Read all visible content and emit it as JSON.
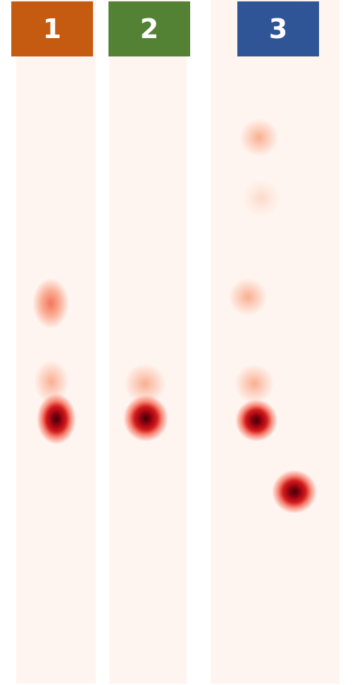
{
  "lanes": [
    {
      "label": "1",
      "color": "#c55a11"
    },
    {
      "label": "2",
      "color": "#548235"
    },
    {
      "label": "3",
      "color": "#2f5597"
    }
  ],
  "lane_background": "#fff5f0",
  "spot_colors": {
    "faint": "#fde0d2",
    "light": "#f9aa8c",
    "medium": "#f46e54",
    "dark": "#8b0010"
  }
}
